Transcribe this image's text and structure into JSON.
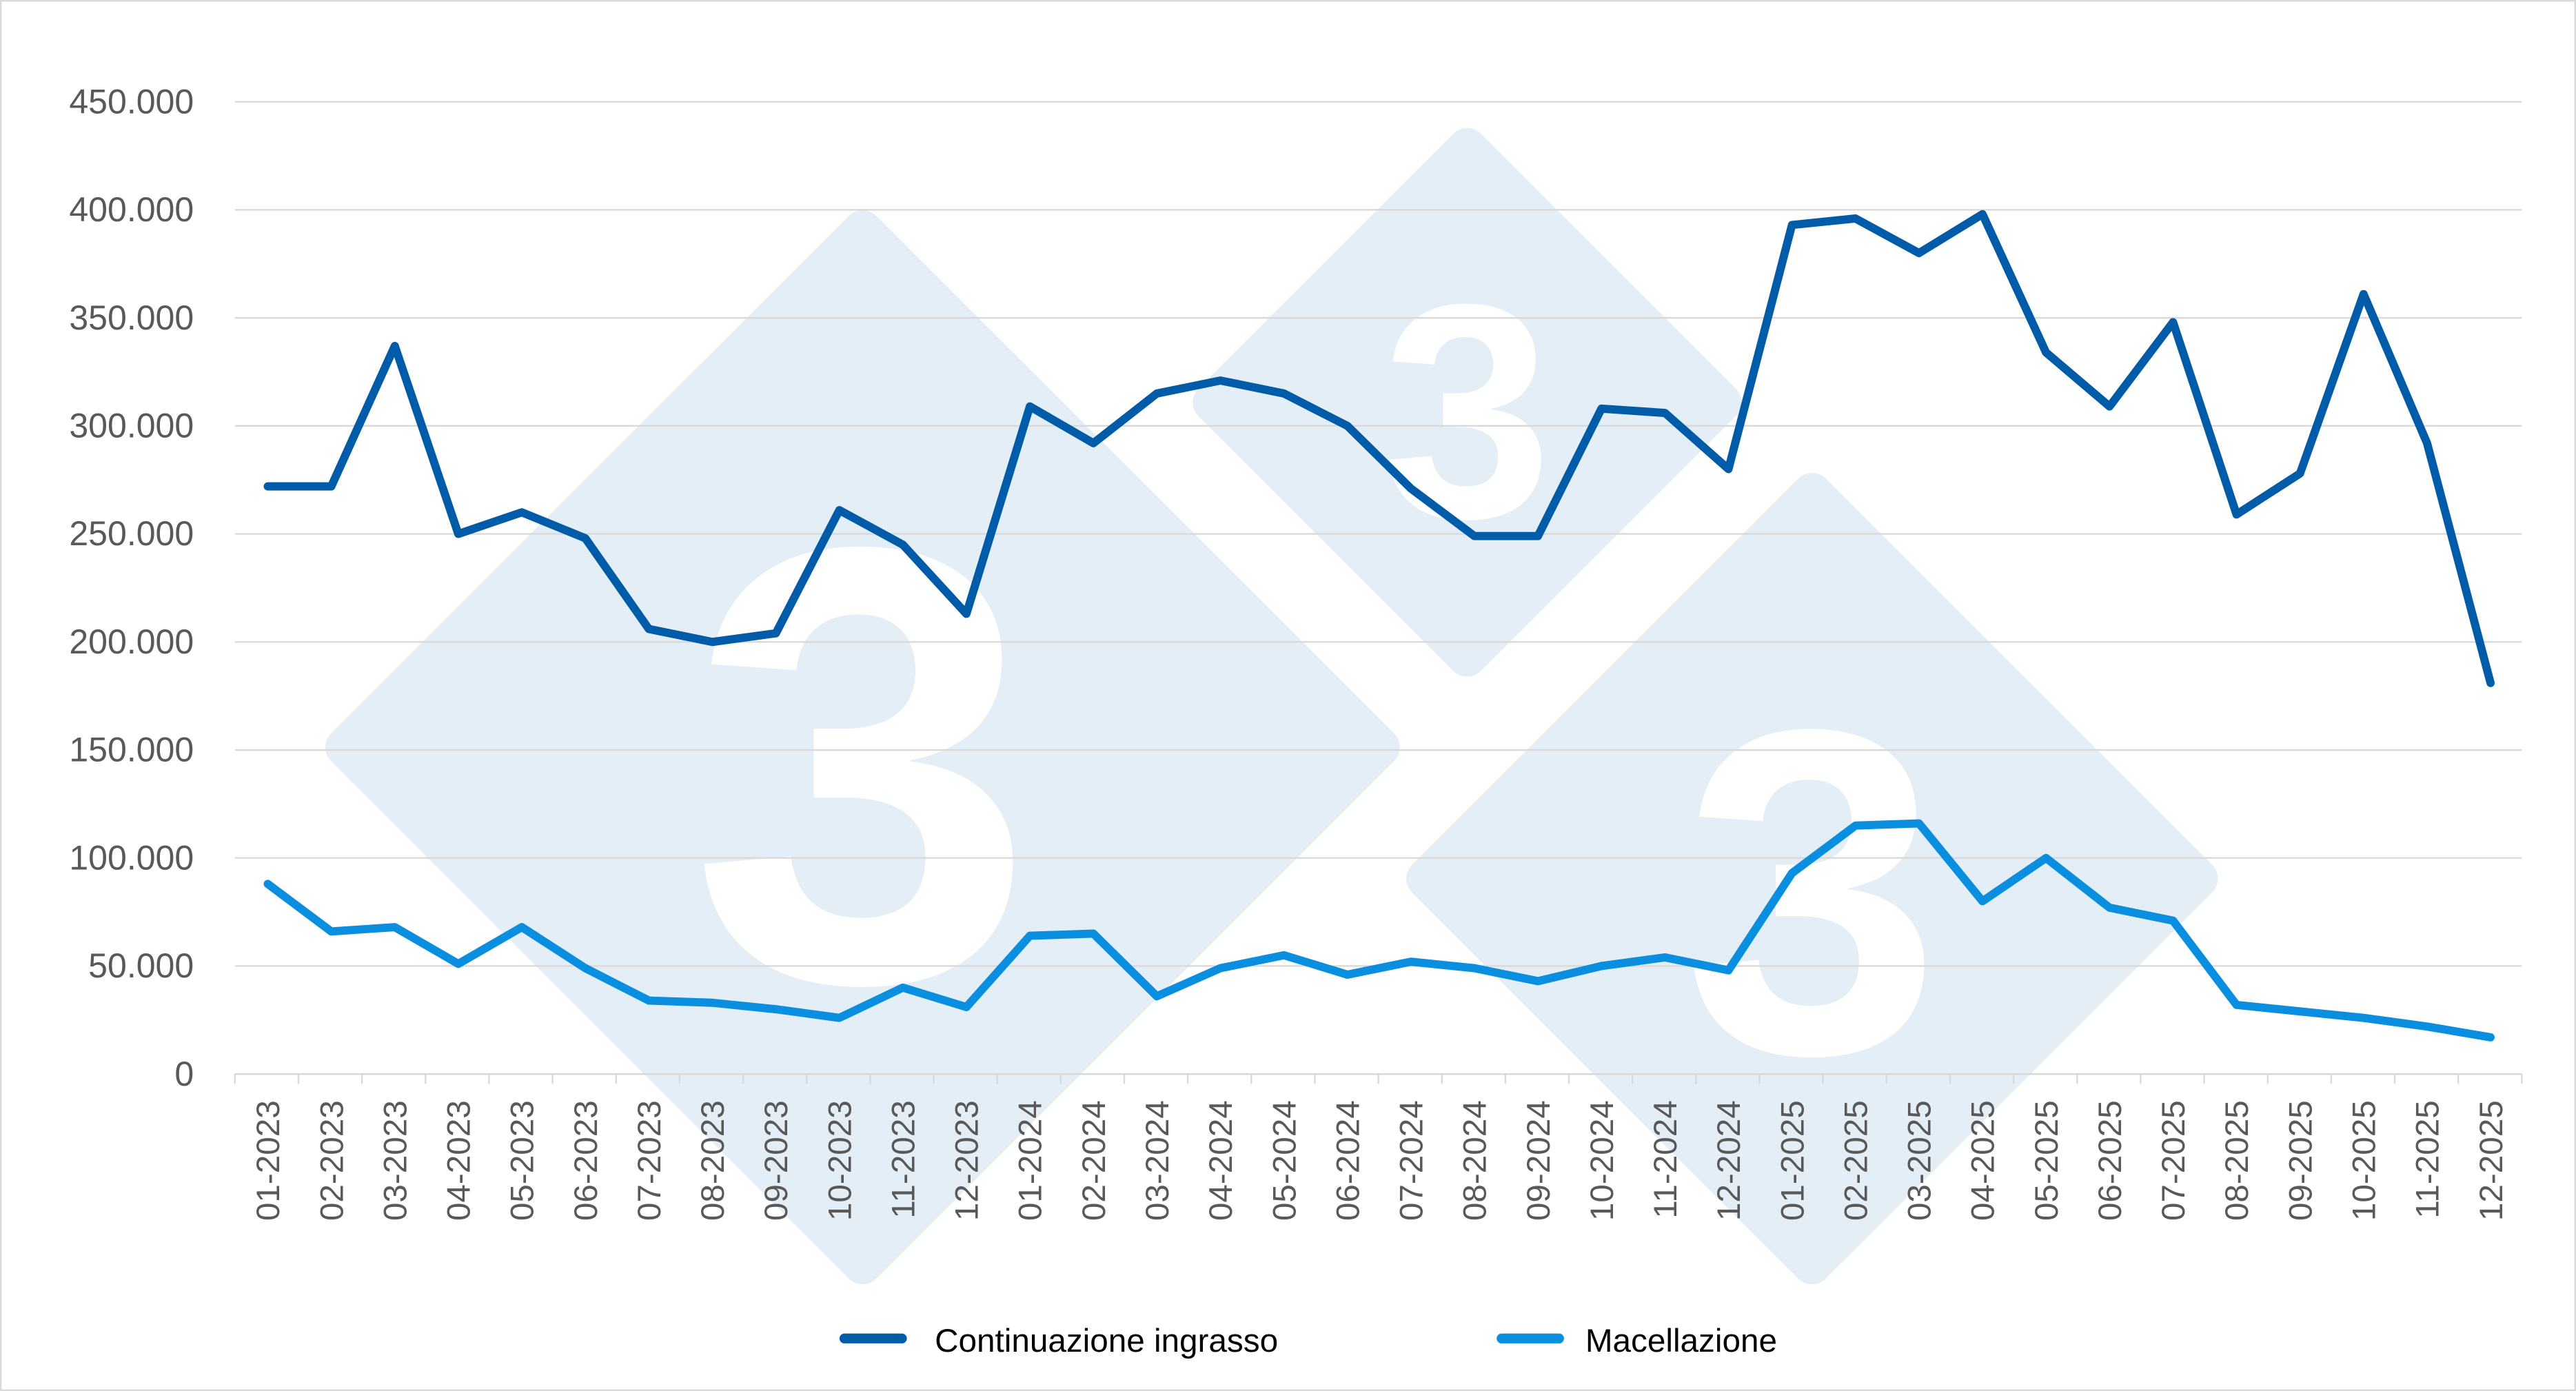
{
  "chart_data": {
    "type": "line",
    "title": "",
    "xlabel": "",
    "ylabel": "",
    "ylim": [
      0,
      450000
    ],
    "yticks": [
      0,
      50000,
      100000,
      150000,
      200000,
      250000,
      300000,
      350000,
      400000,
      450000
    ],
    "ytick_labels": [
      "0",
      "50.000",
      "100.000",
      "150.000",
      "200.000",
      "250.000",
      "300.000",
      "350.000",
      "400.000",
      "450.000"
    ],
    "grid": true,
    "legend_position": "bottom",
    "categories": [
      "01-2023",
      "02-2023",
      "03-2023",
      "04-2023",
      "05-2023",
      "06-2023",
      "07-2023",
      "08-2023",
      "09-2023",
      "10-2023",
      "11-2023",
      "12-2023",
      "01-2024",
      "02-2024",
      "03-2024",
      "04-2024",
      "05-2024",
      "06-2024",
      "07-2024",
      "08-2024",
      "09-2024",
      "10-2024",
      "11-2024",
      "12-2024",
      "01-2025",
      "02-2025",
      "03-2025",
      "04-2025",
      "05-2025",
      "06-2025",
      "07-2025",
      "08-2025",
      "09-2025",
      "10-2025",
      "11-2025",
      "12-2025"
    ],
    "series": [
      {
        "name": "Continuazione ingrasso",
        "color": "#005BA8",
        "values": [
          272000,
          272000,
          337000,
          250000,
          260000,
          248000,
          206000,
          200000,
          204000,
          261000,
          245000,
          213000,
          309000,
          292000,
          315000,
          321000,
          315000,
          300000,
          271000,
          249000,
          249000,
          308000,
          306000,
          280000,
          393000,
          396000,
          380000,
          398000,
          334000,
          309000,
          348000,
          259000,
          278000,
          361000,
          292000,
          181000
        ]
      },
      {
        "name": "Macellazione",
        "color": "#0A8EE0",
        "values": [
          88000,
          66000,
          68000,
          51000,
          68000,
          49000,
          34000,
          33000,
          30000,
          26000,
          40000,
          31000,
          64000,
          65000,
          36000,
          49000,
          55000,
          46000,
          52000,
          49000,
          43000,
          50000,
          54000,
          48000,
          93000,
          115000,
          116000,
          80000,
          100000,
          77000,
          71000,
          32000,
          29000,
          26000,
          22000,
          17000
        ]
      }
    ]
  },
  "watermark": {
    "text": "3",
    "color": "#e3eef7"
  }
}
